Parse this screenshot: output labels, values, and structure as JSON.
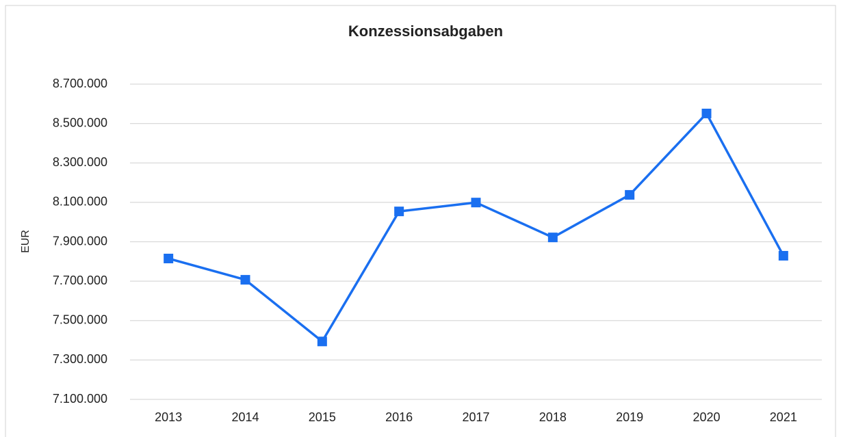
{
  "chart_data": {
    "type": "line",
    "title": "Konzessionsabgaben",
    "y_label": "EUR",
    "categories": [
      "2013",
      "2014",
      "2015",
      "2016",
      "2017",
      "2018",
      "2019",
      "2020",
      "2021"
    ],
    "series": [
      {
        "name": "Konzessionsabgaben",
        "color": "#1a6ff0",
        "values": [
          7815000,
          7707000,
          7394000,
          8054000,
          8099000,
          7922000,
          8138000,
          8551000,
          7829000
        ]
      }
    ],
    "ylim": [
      7100000,
      8700000
    ],
    "yticks": [
      {
        "value": 7100000,
        "label": "7.100.000"
      },
      {
        "value": 7300000,
        "label": "7.300.000"
      },
      {
        "value": 7500000,
        "label": "7.500.000"
      },
      {
        "value": 7700000,
        "label": "7.700.000"
      },
      {
        "value": 7900000,
        "label": "7.900.000"
      },
      {
        "value": 8100000,
        "label": "8.100.000"
      },
      {
        "value": 8300000,
        "label": "8.300.000"
      },
      {
        "value": 8500000,
        "label": "8.500.000"
      },
      {
        "value": 8700000,
        "label": "8.700.000"
      }
    ],
    "grid": true
  }
}
